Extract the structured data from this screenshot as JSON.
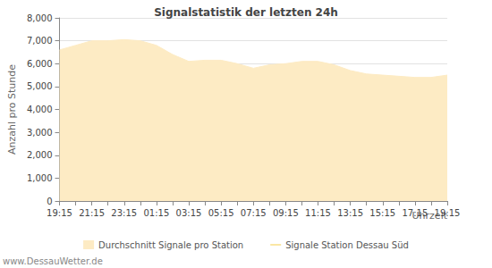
{
  "chart_data": {
    "type": "area",
    "title": "Signalstatistik der letzten 24h",
    "x_label": "Uhrzeit",
    "y_label": "Anzahl pro Stunde",
    "source": "www.DessauWetter.de",
    "categories": [
      "19:15",
      null,
      "21:15",
      null,
      "23:15",
      null,
      "01:15",
      null,
      "03:15",
      null,
      "05:15",
      null,
      "07:15",
      null,
      "09:15",
      null,
      "11:15",
      null,
      "13:15",
      null,
      "15:15",
      null,
      "17:15",
      null,
      "19:15"
    ],
    "series": [
      {
        "name": "Durchschnitt Signale pro Station",
        "color": "#fdebc4",
        "type": "area",
        "values": [
          6600,
          6800,
          7000,
          7000,
          7050,
          7000,
          6800,
          6400,
          6100,
          6150,
          6150,
          6000,
          5800,
          5950,
          6000,
          6100,
          6100,
          5950,
          5700,
          5550,
          5500,
          5450,
          5400,
          5400,
          5500
        ]
      },
      {
        "name": "Signale Station Dessau Süd",
        "color": "#f2c21b",
        "type": "line",
        "values": [
          null,
          null,
          null,
          null,
          null,
          null,
          null,
          null,
          null,
          null,
          null,
          null,
          null,
          null,
          null,
          null,
          null,
          null,
          null,
          null,
          null,
          null,
          null,
          null,
          null
        ]
      }
    ],
    "ylim": [
      0,
      8000
    ],
    "yticks": [
      0,
      1000,
      2000,
      3000,
      4000,
      5000,
      6000,
      7000,
      8000
    ],
    "grid": true,
    "legend": "bottom"
  }
}
